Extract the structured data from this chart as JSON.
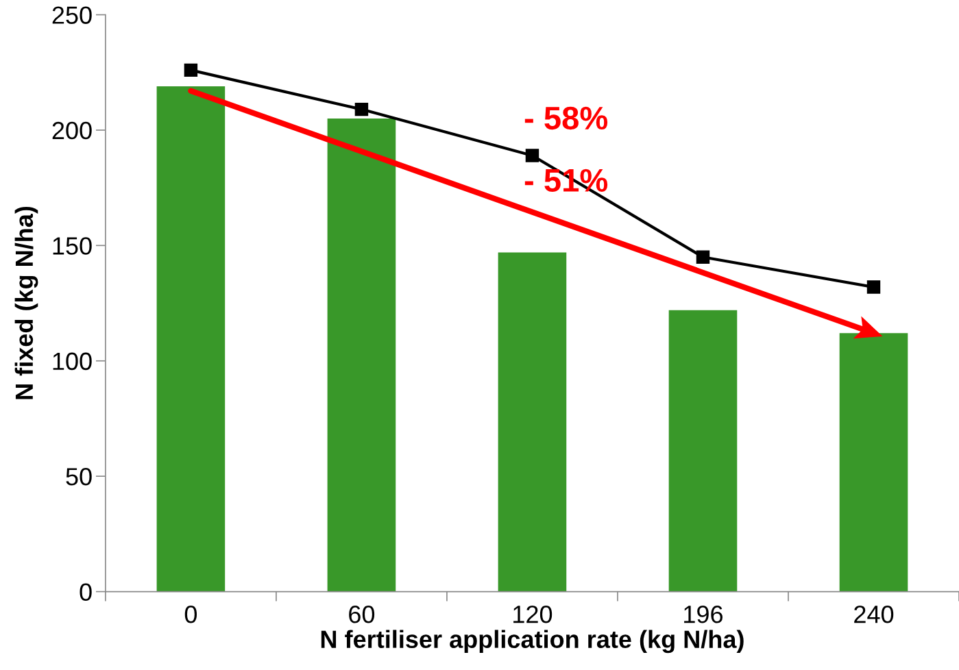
{
  "chart_data": {
    "type": "bar",
    "xlabel": "N fertiliser application rate (kg N/ha)",
    "ylabel": "N fixed (kg N/ha)",
    "categories": [
      "0",
      "60",
      "120",
      "196",
      "240"
    ],
    "series": [
      {
        "color": "#399829",
        "values": [
          219,
          205,
          147,
          122,
          112
        ]
      },
      {
        "type": "line",
        "color": "#ff0000",
        "x": [
          "0",
          "240"
        ],
        "values": [
          217,
          112
        ]
      },
      {
        "type": "line",
        "color": "#000000",
        "marker": "square",
        "values": [
          226,
          209,
          189,
          145,
          132
        ]
      }
    ],
    "ylim": [
      0,
      250
    ],
    "yticks": [
      0,
      50,
      100,
      150,
      200,
      250
    ],
    "grid": false,
    "legend": false,
    "annotations": [
      "- 58%",
      "- 51%"
    ]
  }
}
